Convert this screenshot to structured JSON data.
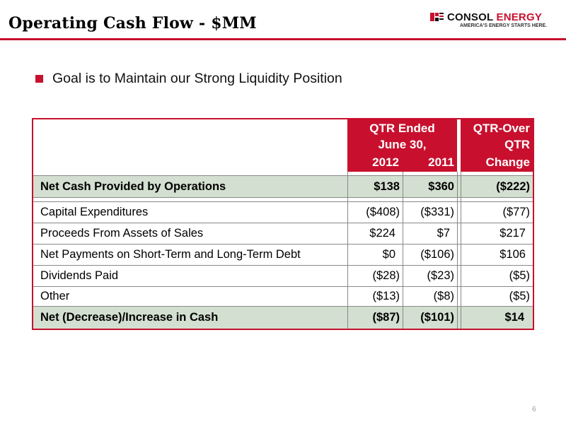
{
  "slide": {
    "title": "Operating Cash Flow - $MM",
    "page_number": "6",
    "accent_color": "#c8102e",
    "shade_color": "#d3dfd0"
  },
  "logo": {
    "name_part1": "CONSOL",
    "name_part2": "ENERGY",
    "tagline": "AMERICA'S ENERGY STARTS HERE."
  },
  "bullet": {
    "text": "Goal is to Maintain our Strong Liquidity Position"
  },
  "table": {
    "header_group": {
      "line1": "QTR Ended",
      "line2": "June 30,",
      "year1": "2012",
      "year2": "2011"
    },
    "header_change": {
      "line1": "QTR-Over",
      "line2": "QTR",
      "line3": "Change"
    },
    "rows": [
      {
        "label": "Net Cash Provided by Operations",
        "v2012": "$138",
        "v2011": "$360",
        "change": "($222)"
      },
      {
        "label": "Capital Expenditures",
        "v2012": "($408)",
        "v2011": "($331)",
        "change": "($77)"
      },
      {
        "label": "Proceeds From Assets of Sales",
        "v2012": "$224",
        "v2011": "$7",
        "change": "$217"
      },
      {
        "label": "Net Payments on Short-Term and Long-Term Debt",
        "v2012": "$0",
        "v2011": "($106)",
        "change": "$106"
      },
      {
        "label": "Dividends Paid",
        "v2012": "($28)",
        "v2011": "($23)",
        "change": "($5)"
      },
      {
        "label": "Other",
        "v2012": "($13)",
        "v2011": "($8)",
        "change": "($5)"
      },
      {
        "label": "Net (Decrease)/Increase in Cash",
        "v2012": "($87)",
        "v2011": "($101)",
        "change": "$14"
      }
    ]
  }
}
